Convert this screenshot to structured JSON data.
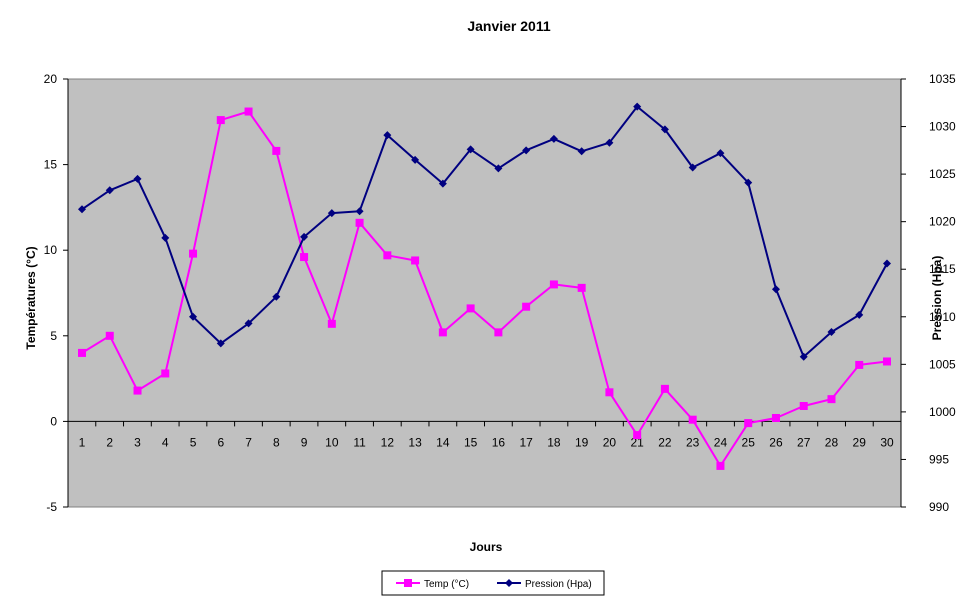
{
  "chart_data": {
    "type": "line",
    "title": "Janvier 2011",
    "xlabel": "Jours",
    "ylabel": "Températures (°C)",
    "y2label": "Pression (Hpa)",
    "categories": [
      "1",
      "2",
      "3",
      "4",
      "5",
      "6",
      "7",
      "8",
      "9",
      "10",
      "11",
      "12",
      "13",
      "14",
      "15",
      "16",
      "17",
      "18",
      "19",
      "20",
      "21",
      "22",
      "23",
      "24",
      "25",
      "26",
      "27",
      "28",
      "29",
      "30"
    ],
    "ylim": [
      -5,
      20
    ],
    "yticks": [
      -5,
      0,
      5,
      10,
      15,
      20
    ],
    "y2lim": [
      990,
      1035
    ],
    "y2ticks": [
      990,
      995,
      1000,
      1005,
      1010,
      1015,
      1020,
      1025,
      1030,
      1035
    ],
    "grid": false,
    "legend": "bottom-center",
    "series": [
      {
        "name": "Temp (°C)",
        "axis": "left",
        "color": "#ff00ff",
        "marker": "square",
        "values": [
          4.0,
          5.0,
          1.8,
          2.8,
          9.8,
          17.6,
          18.1,
          15.8,
          9.6,
          5.7,
          11.6,
          9.7,
          9.4,
          5.2,
          6.6,
          5.2,
          6.7,
          8.0,
          7.8,
          1.7,
          -0.8,
          1.9,
          0.1,
          -2.6,
          -0.1,
          0.2,
          0.9,
          1.3,
          3.3,
          3.5
        ]
      },
      {
        "name": "Pression (Hpa)",
        "axis": "right",
        "color": "#000080",
        "marker": "diamond",
        "values": [
          1021.3,
          1023.3,
          1024.5,
          1018.3,
          1010.0,
          1007.2,
          1009.3,
          1012.1,
          1018.4,
          1020.9,
          1021.1,
          1029.1,
          1026.5,
          1024.0,
          1027.6,
          1025.6,
          1027.5,
          1028.7,
          1027.4,
          1028.3,
          1032.1,
          1029.7,
          1025.7,
          1027.2,
          1024.1,
          1012.9,
          1005.8,
          1008.4,
          1010.2,
          1015.6
        ]
      }
    ]
  }
}
